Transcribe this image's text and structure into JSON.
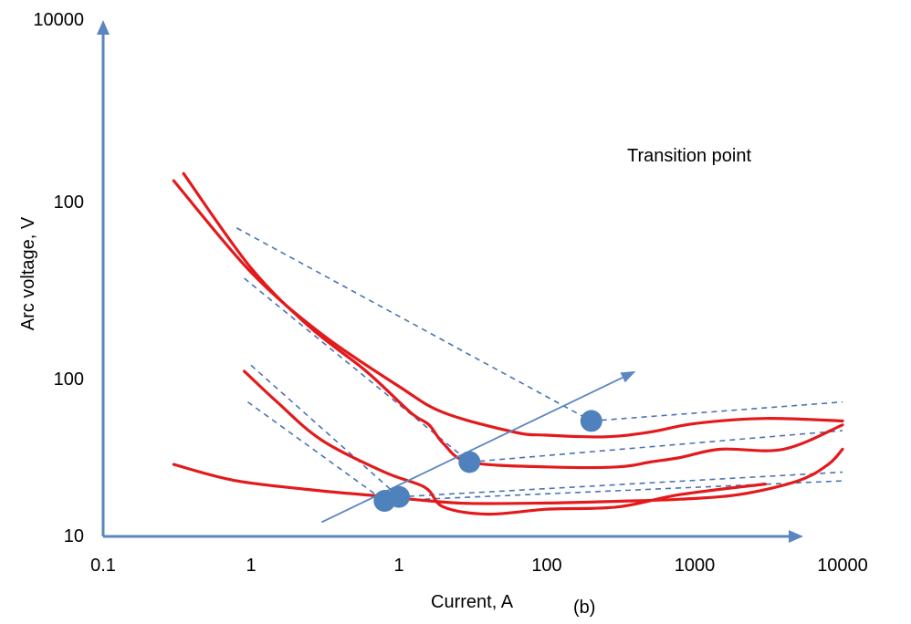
{
  "chart_data": {
    "type": "line",
    "xlabel": "Current, A",
    "ylabel": "Arc voltage, V",
    "x_tick_labels": [
      "0.1",
      "1",
      "1",
      "100",
      "1000",
      "10000"
    ],
    "y_tick_labels": [
      "10000",
      "100",
      "100",
      "10"
    ],
    "panel_label": "(b)",
    "annotation": "Transition point",
    "colors": {
      "curve": "#e31a1c",
      "axis": "#5b86c0",
      "dashed": "#4a74b0",
      "marker": "#4f81bd"
    },
    "series": [
      {
        "values": [
          [
            0.3,
            1800
          ],
          [
            1,
            470
          ],
          [
            3,
            190
          ],
          [
            10,
            88
          ],
          [
            20,
            60
          ],
          [
            60,
            45
          ],
          [
            100,
            43
          ],
          [
            250,
            42
          ],
          [
            500,
            45
          ],
          [
            1000,
            51
          ],
          [
            3000,
            55
          ],
          [
            10000,
            53
          ]
        ]
      },
      {
        "values": [
          [
            0.35,
            2000
          ],
          [
            1,
            500
          ],
          [
            2.5,
            210
          ],
          [
            6,
            110
          ],
          [
            12,
            60
          ],
          [
            16,
            50
          ],
          [
            20,
            38
          ],
          [
            30,
            29
          ],
          [
            100,
            27
          ],
          [
            300,
            27
          ],
          [
            500,
            29
          ],
          [
            800,
            31
          ],
          [
            1500,
            35
          ],
          [
            4000,
            35
          ],
          [
            10000,
            50
          ]
        ]
      },
      {
        "values": [
          [
            0.9,
            110
          ],
          [
            1.5,
            70
          ],
          [
            3,
            40
          ],
          [
            8,
            25
          ],
          [
            15,
            20
          ],
          [
            20,
            15
          ],
          [
            40,
            13.5
          ],
          [
            100,
            14.5
          ],
          [
            300,
            15
          ],
          [
            800,
            18
          ],
          [
            3000,
            21
          ]
        ]
      },
      {
        "values": [
          [
            0.3,
            28
          ],
          [
            0.8,
            22
          ],
          [
            3,
            19
          ],
          [
            8,
            17.5
          ],
          [
            15,
            16.5
          ],
          [
            30,
            15.8
          ],
          [
            100,
            15.9
          ],
          [
            300,
            16.3
          ],
          [
            800,
            16.8
          ],
          [
            2000,
            18
          ],
          [
            5000,
            22
          ],
          [
            8000,
            28
          ],
          [
            10000,
            35
          ]
        ]
      }
    ],
    "transition_points": [
      [
        8,
        16.4
      ],
      [
        10,
        17.4
      ],
      [
        30,
        29
      ],
      [
        200,
        53
      ]
    ],
    "transition_arrow": [
      [
        3,
        12
      ],
      [
        400,
        110
      ]
    ],
    "dashed_lines": [
      [
        [
          0.8,
          900
        ],
        [
          200,
          53
        ]
      ],
      [
        [
          200,
          53
        ],
        [
          10000,
          70
        ]
      ],
      [
        [
          0.9,
          430
        ],
        [
          30,
          29
        ]
      ],
      [
        [
          30,
          29
        ],
        [
          10000,
          46
        ]
      ],
      [
        [
          1,
          120
        ],
        [
          10,
          17.4
        ]
      ],
      [
        [
          10,
          17.4
        ],
        [
          10000,
          25
        ]
      ],
      [
        [
          0.95,
          70
        ],
        [
          8,
          16.4
        ]
      ],
      [
        [
          8,
          16.4
        ],
        [
          10000,
          22
        ]
      ]
    ]
  }
}
